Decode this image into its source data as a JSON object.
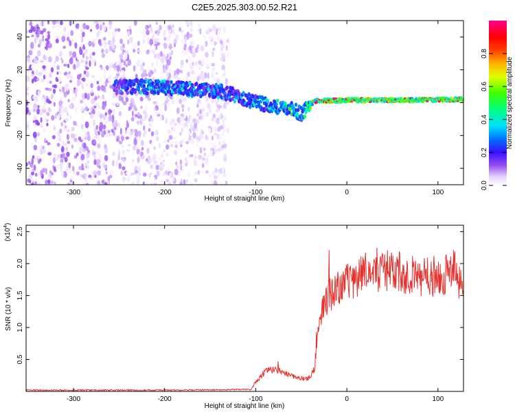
{
  "title": "C2E5.2025.303.00.52.R21",
  "chart_data": [
    {
      "type": "heatmap",
      "xlabel": "Height of straight line (km)",
      "ylabel": "Frequency (Hz)",
      "xlim": [
        -352,
        128
      ],
      "ylim": [
        -50,
        50
      ],
      "xticks": [
        -300,
        -200,
        -100,
        0,
        100
      ],
      "yticks": [
        -40,
        -20,
        0,
        20,
        40
      ],
      "colorbar": {
        "label": "Normalized spectral amplitude",
        "range": [
          0,
          1
        ],
        "ticks": [
          "0.0",
          "0.2",
          "0.4",
          "0.6",
          "0.8"
        ],
        "tick_values": [
          0.0,
          0.2,
          0.4,
          0.6,
          0.8
        ]
      },
      "ridge": {
        "x": [
          -255,
          -230,
          -200,
          -170,
          -140,
          -120,
          -100,
          -80,
          -60,
          -50,
          -42,
          -35,
          0,
          60,
          128
        ],
        "freq": [
          9,
          10,
          9,
          8,
          7,
          4,
          0,
          -2,
          -4,
          -7,
          -2,
          1,
          1.5,
          1.5,
          2
        ],
        "amplitude": [
          0.3,
          0.4,
          0.45,
          0.4,
          0.4,
          0.35,
          0.45,
          0.5,
          0.55,
          0.4,
          0.7,
          0.95,
          0.95,
          0.95,
          0.9
        ]
      },
      "noise_region": {
        "x": [
          -352,
          -130
        ],
        "amplitude_max": 0.15
      }
    },
    {
      "type": "line",
      "xlabel": "Height of straight line (km)",
      "ylabel": "SNR (10 * v/v)",
      "yscale_label": "(x10",
      "yscale_exp": "4",
      "xlim": [
        -352,
        128
      ],
      "ylim": [
        0,
        2.6
      ],
      "xticks": [
        -300,
        -200,
        -100,
        0,
        100
      ],
      "yticks": [
        0.5,
        1.0,
        1.5,
        2.0,
        2.5
      ],
      "ytick_labels": [
        "0.5",
        "1.0",
        "1.5",
        "2.0",
        "2.5"
      ],
      "color": "#e8302c",
      "series": [
        {
          "name": "SNR",
          "x": [
            -352,
            -200,
            -105,
            -100,
            -90,
            -80,
            -70,
            -60,
            -50,
            -40,
            -35,
            -32,
            -28,
            -25,
            -20,
            -10,
            0,
            10,
            20,
            30,
            40,
            50,
            60,
            80,
            100,
            110,
            120,
            128
          ],
          "y": [
            0.02,
            0.02,
            0.03,
            0.15,
            0.3,
            0.35,
            0.3,
            0.25,
            0.2,
            0.2,
            0.4,
            0.9,
            1.2,
            1.3,
            1.5,
            1.6,
            1.7,
            1.8,
            1.85,
            1.85,
            1.9,
            1.85,
            1.85,
            1.8,
            1.8,
            1.85,
            1.9,
            1.5
          ]
        }
      ]
    }
  ]
}
